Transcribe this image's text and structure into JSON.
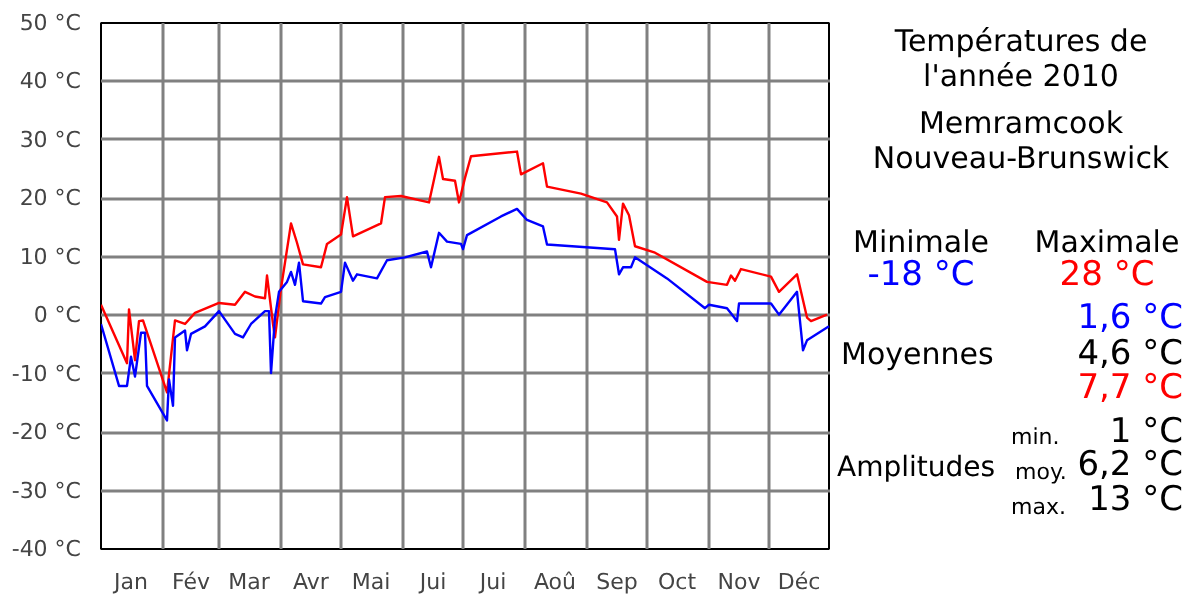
{
  "chart_data": {
    "type": "line",
    "title": "Températures de l'année 2010",
    "subtitle": "Memramcook Nouveau-Brunswick",
    "annotations": [
      "Minimale",
      "-18 °C",
      "Maximale",
      "28 °C",
      "1,6 °C",
      "Moyennes",
      "4,6 °C",
      "7,7 °C",
      "min.",
      "1 °C",
      "Amplitudes",
      "moy.",
      "6,2 °C",
      "max.",
      "13 °C"
    ],
    "series": [
      {
        "color": "#ff0000",
        "x": [
          "2010-01-01",
          "2010-01-14",
          "2010-01-15",
          "2010-01-18",
          "2010-01-20",
          "2010-01-22",
          "2010-02-03",
          "2010-02-07",
          "2010-02-12",
          "2010-02-17",
          "2010-03-01",
          "2010-03-09",
          "2010-03-14",
          "2010-03-19",
          "2010-03-24",
          "2010-03-25",
          "2010-03-28",
          "2010-03-29",
          "2010-04-01",
          "2010-04-03",
          "2010-04-06",
          "2010-04-09",
          "2010-04-12",
          "2010-04-21",
          "2010-04-24",
          "2010-05-01",
          "2010-05-04",
          "2010-05-07",
          "2010-05-21",
          "2010-05-23",
          "2010-05-31",
          "2010-06-14",
          "2010-06-19",
          "2010-06-21",
          "2010-06-27",
          "2010-06-29",
          "2010-07-02",
          "2010-07-05",
          "2010-07-28",
          "2010-07-30",
          "2010-08-10",
          "2010-08-12",
          "2010-08-29",
          "2010-09-11",
          "2010-09-16",
          "2010-09-17",
          "2010-09-19",
          "2010-09-22",
          "2010-09-25",
          "2010-10-05",
          "2010-10-31",
          "2010-11-10",
          "2010-11-12",
          "2010-11-14",
          "2010-11-17",
          "2010-12-02",
          "2010-12-06",
          "2010-12-15",
          "2010-12-20",
          "2010-12-22",
          "2010-12-30"
        ],
        "values": [
          1.8,
          -8.2,
          1,
          -7.7,
          -1,
          -0.9,
          -13.2,
          -0.9,
          -1.5,
          0.4,
          2.1,
          1.8,
          4,
          3.2,
          2.9,
          6.8,
          -1.5,
          -3.8,
          4.6,
          9,
          15.7,
          12.4,
          8.7,
          8.2,
          12.2,
          13.8,
          20.2,
          13.5,
          15.7,
          20.2,
          20.4,
          19.3,
          27.1,
          23.3,
          23,
          19.3,
          23.5,
          27.2,
          28,
          24.1,
          26,
          22,
          20.8,
          19.3,
          16.9,
          12.9,
          19.1,
          17.1,
          11.8,
          10.7,
          5.7,
          5.2,
          6.8,
          5.9,
          7.9,
          6.6,
          4,
          7,
          -0.4,
          -1,
          0.1
        ]
      },
      {
        "color": "#0000ff",
        "x": [
          "2010-01-01",
          "2010-01-10",
          "2010-01-14",
          "2010-01-16",
          "2010-01-18",
          "2010-01-21",
          "2010-01-23",
          "2010-01-24",
          "2010-02-03",
          "2010-02-04",
          "2010-02-06",
          "2010-02-07",
          "2010-02-12",
          "2010-02-13",
          "2010-02-15",
          "2010-02-22",
          "2010-03-01",
          "2010-03-09",
          "2010-03-13",
          "2010-03-17",
          "2010-03-24",
          "2010-03-26",
          "2010-03-27",
          "2010-03-29",
          "2010-03-31",
          "2010-04-04",
          "2010-04-06",
          "2010-04-08",
          "2010-04-10",
          "2010-04-12",
          "2010-04-21",
          "2010-04-23",
          "2010-05-01",
          "2010-05-03",
          "2010-05-07",
          "2010-05-09",
          "2010-05-19",
          "2010-05-24",
          "2010-06-02",
          "2010-06-13",
          "2010-06-15",
          "2010-06-19",
          "2010-06-23",
          "2010-06-30",
          "2010-07-01",
          "2010-07-03",
          "2010-07-20",
          "2010-07-28",
          "2010-08-02",
          "2010-08-10",
          "2010-08-12",
          "2010-09-15",
          "2010-09-17",
          "2010-09-19",
          "2010-09-23",
          "2010-09-25",
          "2010-10-11",
          "2010-10-30",
          "2010-11-01",
          "2010-11-10",
          "2010-11-15",
          "2010-11-16",
          "2010-12-02",
          "2010-12-06",
          "2010-12-15",
          "2010-12-18",
          "2010-12-20",
          "2010-12-31"
        ],
        "values": [
          -1.5,
          -12.1,
          -12.1,
          -7.1,
          -10.5,
          -3,
          -3,
          -12.1,
          -18,
          -11,
          -15.5,
          -3.8,
          -2.6,
          -6,
          -3.2,
          -1.9,
          0.7,
          -3.2,
          -3.8,
          -1.5,
          0.7,
          0.7,
          -9.9,
          -0.4,
          4,
          5.7,
          7.4,
          5.2,
          9,
          2.4,
          2,
          3.1,
          4,
          9,
          5.9,
          7,
          6.3,
          9.4,
          9.9,
          10.9,
          8.2,
          14.1,
          12.6,
          12.2,
          11.3,
          13.7,
          16.9,
          18.2,
          16.3,
          15.2,
          12.1,
          11.3,
          7,
          8.2,
          8.2,
          9.9,
          6.3,
          1.2,
          1.8,
          1.2,
          -1,
          2,
          2,
          0.1,
          4,
          -6,
          -4.3,
          -1.9
        ]
      }
    ],
    "xlim": [
      "2010-01-01",
      "2011-01-01"
    ],
    "xticks": [
      {
        "value": "2010-01-01",
        "label": null
      },
      {
        "value": "2010-01-16",
        "label": "Jan"
      },
      {
        "value": "2010-02-01",
        "label": null
      },
      {
        "value": "2010-02-15",
        "label": "Fév"
      },
      {
        "value": "2010-03-01",
        "label": null
      },
      {
        "value": "2010-03-16",
        "label": "Mar"
      },
      {
        "value": "2010-04-01",
        "label": null
      },
      {
        "value": "2010-04-16",
        "label": "Avr"
      },
      {
        "value": "2010-05-01",
        "label": null
      },
      {
        "value": "2010-05-16",
        "label": "Mai"
      },
      {
        "value": "2010-06-01",
        "label": null
      },
      {
        "value": "2010-06-16",
        "label": "Jui"
      },
      {
        "value": "2010-07-01",
        "label": null
      },
      {
        "value": "2010-07-16",
        "label": "Jui"
      },
      {
        "value": "2010-08-01",
        "label": null
      },
      {
        "value": "2010-08-16",
        "label": "Aoû"
      },
      {
        "value": "2010-09-01",
        "label": null
      },
      {
        "value": "2010-09-16",
        "label": "Sep"
      },
      {
        "value": "2010-10-01",
        "label": null
      },
      {
        "value": "2010-10-16",
        "label": "Oct"
      },
      {
        "value": "2010-11-01",
        "label": null
      },
      {
        "value": "2010-11-16",
        "label": "Nov"
      },
      {
        "value": "2010-12-01",
        "label": null
      },
      {
        "value": "2010-12-16",
        "label": "Déc"
      },
      {
        "value": "2011-01-01",
        "label": null
      }
    ],
    "ylim": [
      -40,
      50
    ],
    "yticks": [
      {
        "value": -40,
        "label": "-40 °C"
      },
      {
        "value": -30,
        "label": "-30 °C"
      },
      {
        "value": -20,
        "label": "-20 °C"
      },
      {
        "value": -10,
        "label": "-10 °C"
      },
      {
        "value": 0,
        "label": "0 °C"
      },
      {
        "value": 10,
        "label": "10 °C"
      },
      {
        "value": 20,
        "label": "20 °C"
      },
      {
        "value": 30,
        "label": "30 °C"
      },
      {
        "value": 40,
        "label": "40 °C"
      },
      {
        "value": 50,
        "label": "50 °C"
      }
    ],
    "grid": true,
    "marker": "none",
    "line_style": "solid"
  }
}
